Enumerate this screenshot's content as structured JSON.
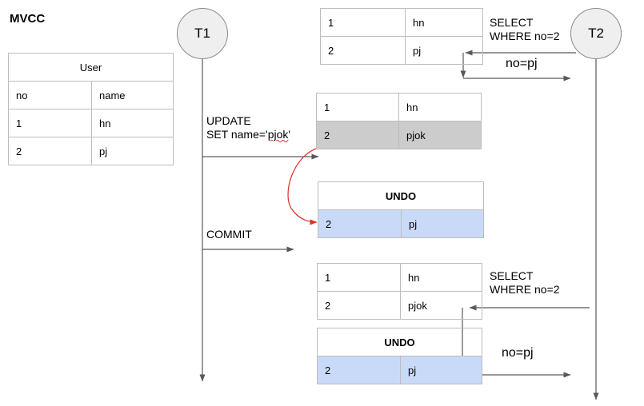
{
  "title": "MVCC",
  "user_table": {
    "caption": "User",
    "headers": [
      "no",
      "name"
    ],
    "rows": [
      [
        "1",
        "hn"
      ],
      [
        "2",
        "pj"
      ]
    ]
  },
  "transactions": {
    "t1": "T1",
    "t2": "T2"
  },
  "snapshot_table": {
    "rows": [
      [
        "1",
        "hn"
      ],
      [
        "2",
        "pj"
      ]
    ]
  },
  "select_top": {
    "line1": "SELECT",
    "line2": "WHERE no=2",
    "result": "no=pj"
  },
  "update": {
    "line1": "UPDATE",
    "line2_prefix": "SET name='",
    "line2_word": "pjok",
    "line2_suffix": "'"
  },
  "updated_table": {
    "rows": [
      [
        "1",
        "hn"
      ],
      [
        "2",
        "pjok"
      ]
    ]
  },
  "undo_top": {
    "caption": "UNDO",
    "row": [
      "2",
      "pj"
    ]
  },
  "commit": "COMMIT",
  "after_commit_table": {
    "rows": [
      [
        "1",
        "hn"
      ],
      [
        "2",
        "pjok"
      ]
    ]
  },
  "select_bottom": {
    "line1": "SELECT",
    "line2": "WHERE no=2",
    "result": "no=pj"
  },
  "undo_bottom": {
    "caption": "UNDO",
    "row": [
      "2",
      "pj"
    ]
  },
  "colors": {
    "line": "#595959",
    "undo_fill": "#c9daf8",
    "updated_fill": "#cccccc",
    "link": "#d93025"
  }
}
